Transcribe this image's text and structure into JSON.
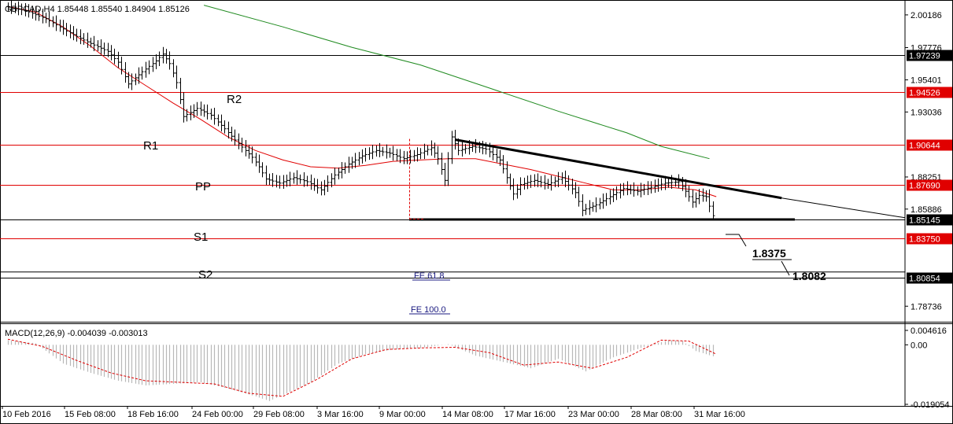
{
  "window": {
    "symbol": "GBPCAD",
    "timeframe": "H4",
    "ohlc": "1.85448 1.85540 1.84904 1.85126"
  },
  "chart_data": [
    {
      "type": "line",
      "title": "GBPCAD,H4 1.85448 1.85540 1.84904 1.85126",
      "price_axis": {
        "ticks": [
          "2.00186",
          "1.97776",
          "1.95401",
          "1.93036",
          "1.88251",
          "1.85886",
          "1.78736"
        ],
        "range": [
          1.7765,
          2.0105
        ]
      },
      "time_axis": {
        "labels": [
          "10 Feb 2016",
          "15 Feb 08:00",
          "18 Feb 16:00",
          "24 Feb 00:00",
          "29 Feb 08:00",
          "3 Mar 16:00",
          "9 Mar 00:00",
          "14 Mar 08:00",
          "17 Mar 16:00",
          "23 Mar 00:00",
          "28 Mar 08:00",
          "31 Mar 16:00"
        ]
      },
      "price_path": [
        [
          0,
          2.008
        ],
        [
          6,
          2.005
        ],
        [
          12,
          1.999
        ],
        [
          18,
          1.99
        ],
        [
          24,
          1.982
        ],
        [
          30,
          1.975
        ],
        [
          33,
          1.967
        ],
        [
          36,
          1.951
        ],
        [
          40,
          1.96
        ],
        [
          44,
          1.968
        ],
        [
          46,
          1.973
        ],
        [
          48,
          1.966
        ],
        [
          50,
          1.952
        ],
        [
          52,
          1.927
        ],
        [
          56,
          1.933
        ],
        [
          60,
          1.928
        ],
        [
          64,
          1.918
        ],
        [
          68,
          1.907
        ],
        [
          72,
          1.897
        ],
        [
          74,
          1.89
        ],
        [
          76,
          1.881
        ],
        [
          80,
          1.878
        ],
        [
          84,
          1.882
        ],
        [
          88,
          1.879
        ],
        [
          92,
          1.873
        ],
        [
          96,
          1.884
        ],
        [
          100,
          1.892
        ],
        [
          104,
          1.898
        ],
        [
          108,
          1.902
        ],
        [
          112,
          1.9
        ],
        [
          116,
          1.896
        ],
        [
          120,
          1.899
        ],
        [
          124,
          1.904
        ],
        [
          126,
          1.896
        ],
        [
          128,
          1.88
        ],
        [
          130,
          1.912
        ],
        [
          132,
          1.902
        ],
        [
          136,
          1.905
        ],
        [
          140,
          1.903
        ],
        [
          144,
          1.895
        ],
        [
          146,
          1.882
        ],
        [
          148,
          1.87
        ],
        [
          150,
          1.877
        ],
        [
          154,
          1.88
        ],
        [
          158,
          1.877
        ],
        [
          162,
          1.882
        ],
        [
          166,
          1.871
        ],
        [
          168,
          1.858
        ],
        [
          172,
          1.862
        ],
        [
          176,
          1.868
        ],
        [
          180,
          1.874
        ],
        [
          184,
          1.872
        ],
        [
          188,
          1.875
        ],
        [
          192,
          1.878
        ],
        [
          196,
          1.879
        ],
        [
          198,
          1.872
        ],
        [
          200,
          1.864
        ],
        [
          202,
          1.869
        ],
        [
          204,
          1.868
        ],
        [
          206,
          1.854
        ]
      ],
      "ma_red": [
        [
          0,
          2.008
        ],
        [
          8,
          2.004
        ],
        [
          16,
          1.993
        ],
        [
          24,
          1.979
        ],
        [
          32,
          1.963
        ],
        [
          40,
          1.95
        ],
        [
          48,
          1.937
        ],
        [
          56,
          1.925
        ],
        [
          64,
          1.912
        ],
        [
          72,
          1.902
        ],
        [
          80,
          1.895
        ],
        [
          88,
          1.89
        ],
        [
          96,
          1.889
        ],
        [
          104,
          1.891
        ],
        [
          112,
          1.894
        ],
        [
          120,
          1.895
        ],
        [
          128,
          1.896
        ],
        [
          136,
          1.896
        ],
        [
          144,
          1.892
        ],
        [
          152,
          1.888
        ],
        [
          160,
          1.883
        ],
        [
          168,
          1.878
        ],
        [
          176,
          1.873
        ],
        [
          184,
          1.873
        ],
        [
          192,
          1.875
        ],
        [
          200,
          1.873
        ],
        [
          206,
          1.868
        ]
      ],
      "ma_green": [
        [
          57,
          2.009
        ],
        [
          80,
          1.993
        ],
        [
          100,
          1.978
        ],
        [
          120,
          1.965
        ],
        [
          140,
          1.948
        ],
        [
          160,
          1.931
        ],
        [
          180,
          1.915
        ],
        [
          190,
          1.905
        ],
        [
          204,
          1.896
        ]
      ],
      "levels": [
        {
          "label": "",
          "price": 1.97239,
          "tag": "1.97239",
          "color": "#000000"
        },
        {
          "label": "R2",
          "price": 1.94526,
          "tag": "1.94526",
          "color": "#e00000"
        },
        {
          "label": "R1",
          "price": 1.90644,
          "tag": "1.90644",
          "color": "#e00000"
        },
        {
          "label": "PP",
          "price": 1.8769,
          "tag": "1.87690",
          "color": "#e00000"
        },
        {
          "label": "",
          "price": 1.85145,
          "tag": "1.85145",
          "color": "#000000"
        },
        {
          "label": "S1",
          "price": 1.8375,
          "tag": "1.83750",
          "color": "#e00000"
        },
        {
          "label": "S2",
          "price": 1.80854,
          "tag": "1.80854",
          "color": "#000000"
        }
      ],
      "annotations": {
        "fe_618": "FE 61.8",
        "fe_100": "FE 100.0",
        "target_1": "1.8375",
        "target_2": "1.8082"
      }
    },
    {
      "type": "bar",
      "title": "MACD(12,26,9) -0.004039 -0.003013",
      "ticks": [
        "0.004616",
        "0.00",
        "-0.019054"
      ],
      "range": [
        -0.019054,
        0.004616
      ],
      "histogram": [
        [
          0,
          0.0015
        ],
        [
          8,
          0.0005
        ],
        [
          16,
          -0.006
        ],
        [
          24,
          -0.009
        ],
        [
          32,
          -0.0115
        ],
        [
          40,
          -0.013
        ],
        [
          48,
          -0.0125
        ],
        [
          56,
          -0.012
        ],
        [
          64,
          -0.014
        ],
        [
          72,
          -0.0165
        ],
        [
          76,
          -0.018
        ],
        [
          80,
          -0.016
        ],
        [
          88,
          -0.012
        ],
        [
          96,
          -0.006
        ],
        [
          104,
          -0.003
        ],
        [
          112,
          -0.0015
        ],
        [
          120,
          -0.001
        ],
        [
          128,
          0.0002
        ],
        [
          136,
          -0.0035
        ],
        [
          144,
          -0.0055
        ],
        [
          152,
          -0.0075
        ],
        [
          160,
          -0.0045
        ],
        [
          168,
          -0.0085
        ],
        [
          176,
          -0.004
        ],
        [
          184,
          -0.001
        ],
        [
          192,
          0.0015
        ],
        [
          196,
          0.0012
        ],
        [
          200,
          -0.002
        ],
        [
          206,
          -0.004
        ]
      ],
      "signal": [
        [
          0,
          0.0018
        ],
        [
          10,
          -0.0005
        ],
        [
          20,
          -0.005
        ],
        [
          30,
          -0.009
        ],
        [
          40,
          -0.0115
        ],
        [
          50,
          -0.012
        ],
        [
          60,
          -0.0125
        ],
        [
          70,
          -0.0155
        ],
        [
          80,
          -0.0165
        ],
        [
          90,
          -0.011
        ],
        [
          100,
          -0.0045
        ],
        [
          110,
          -0.0015
        ],
        [
          120,
          -0.001
        ],
        [
          130,
          -0.0008
        ],
        [
          140,
          -0.0025
        ],
        [
          150,
          -0.0065
        ],
        [
          160,
          -0.0055
        ],
        [
          170,
          -0.0075
        ],
        [
          180,
          -0.004
        ],
        [
          190,
          0.0015
        ],
        [
          198,
          0.0012
        ],
        [
          206,
          -0.003
        ]
      ]
    }
  ]
}
